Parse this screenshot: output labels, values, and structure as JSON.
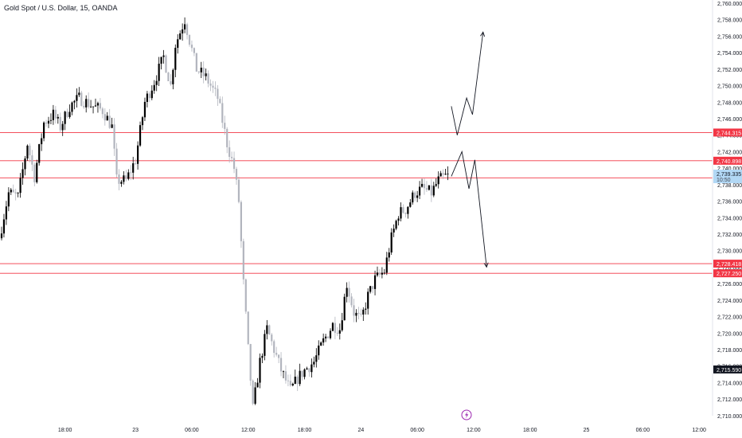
{
  "header": {
    "title": "Gold Spot / U.S. Dollar, 15, OANDA"
  },
  "colors": {
    "up": "#000000",
    "down": "#b2b5be",
    "level_line": "#f23645",
    "level_tag": "#f23645",
    "current_tag_bg": "#b2d8f5",
    "last_tag_bg": "#131722",
    "axis_text": "#131722",
    "arrow": "#131722",
    "lightning": "#9c27b0"
  },
  "chart_data": {
    "type": "candlestick",
    "symbol": "XAUUSD",
    "timeframe": "15",
    "ylim": [
      2709.5,
      2760.0
    ],
    "y_ticks": [
      "2,710.000",
      "2,712.000",
      "2,714.000",
      "2,716.000",
      "2,718.000",
      "2,720.000",
      "2,722.000",
      "2,724.000",
      "2,726.000",
      "2,728.000",
      "2,730.000",
      "2,732.000",
      "2,734.000",
      "2,736.000",
      "2,738.000",
      "2,740.000",
      "2,742.000",
      "2,744.000",
      "2,746.000",
      "2,748.000",
      "2,750.000",
      "2,752.000",
      "2,754.000",
      "2,756.000",
      "2,758.000",
      "2,760.000"
    ],
    "x_ticks": [
      {
        "label": "18:00",
        "t": 27
      },
      {
        "label": "23",
        "t": 57
      },
      {
        "label": "06:00",
        "t": 81
      },
      {
        "label": "12:00",
        "t": 105
      },
      {
        "label": "18:00",
        "t": 129
      },
      {
        "label": "24",
        "t": 153
      },
      {
        "label": "06:00",
        "t": 177
      },
      {
        "label": "12:00",
        "t": 201
      },
      {
        "label": "18:00",
        "t": 225
      },
      {
        "label": "25",
        "t": 249
      },
      {
        "label": "06:00",
        "t": 273
      },
      {
        "label": "12:00",
        "t": 297
      }
    ],
    "horizontal_levels": [
      {
        "value": 2744.315,
        "label": "2,744.315"
      },
      {
        "value": 2740.898,
        "label": "2,740.898"
      },
      {
        "value": 2738.827,
        "label": "2,738.827"
      },
      {
        "value": 2728.418,
        "label": "2,728.418"
      },
      {
        "value": 2727.25,
        "label": "2,727.250"
      }
    ],
    "current_price": {
      "value": 2739.335,
      "label": "2,739.335",
      "countdown": "10:50"
    },
    "last_price_tag": {
      "value": 2715.59,
      "label": "2,715.590"
    },
    "path_anchors": [
      [
        0,
        2731.5
      ],
      [
        4,
        2737.0
      ],
      [
        8,
        2736.5
      ],
      [
        12,
        2743.0
      ],
      [
        15,
        2739.0
      ],
      [
        19,
        2745.5
      ],
      [
        23,
        2746.5
      ],
      [
        26,
        2745.0
      ],
      [
        30,
        2747.5
      ],
      [
        34,
        2748.5
      ],
      [
        40,
        2747.5
      ],
      [
        44,
        2747.0
      ],
      [
        48,
        2745.0
      ],
      [
        50,
        2738.5
      ],
      [
        54,
        2738.5
      ],
      [
        58,
        2741.0
      ],
      [
        62,
        2748.0
      ],
      [
        66,
        2750.5
      ],
      [
        70,
        2753.5
      ],
      [
        73,
        2750.0
      ],
      [
        75,
        2755.0
      ],
      [
        79,
        2758.0
      ],
      [
        81,
        2755.5
      ],
      [
        84,
        2752.0
      ],
      [
        88,
        2751.0
      ],
      [
        93,
        2748.5
      ],
      [
        97,
        2743.0
      ],
      [
        100,
        2740.0
      ],
      [
        102,
        2736.0
      ],
      [
        104,
        2726.0
      ],
      [
        106,
        2718.0
      ],
      [
        108,
        2710.8
      ],
      [
        111,
        2716.5
      ],
      [
        114,
        2720.5
      ],
      [
        117,
        2718.0
      ],
      [
        120,
        2715.5
      ],
      [
        124,
        2713.0
      ],
      [
        127,
        2714.5
      ],
      [
        130,
        2715.5
      ],
      [
        134,
        2716.5
      ],
      [
        138,
        2719.0
      ],
      [
        142,
        2721.0
      ],
      [
        145,
        2720.5
      ],
      [
        148,
        2726.0
      ],
      [
        151,
        2722.5
      ],
      [
        154,
        2721.5
      ],
      [
        157,
        2724.5
      ],
      [
        160,
        2726.5
      ],
      [
        164,
        2727.5
      ],
      [
        167,
        2731.5
      ],
      [
        170,
        2734.5
      ],
      [
        173,
        2735.0
      ],
      [
        177,
        2737.0
      ],
      [
        180,
        2737.5
      ],
      [
        184,
        2737.0
      ],
      [
        187,
        2738.5
      ],
      [
        190,
        2739.0
      ]
    ],
    "projections": {
      "bullish": [
        [
          191.5,
          2747.5
        ],
        [
          194.0,
          2744.0
        ],
        [
          198.0,
          2748.5
        ],
        [
          200.5,
          2746.5
        ],
        [
          205.0,
          2756.5
        ]
      ],
      "bearish": [
        [
          191.5,
          2739.0
        ],
        [
          196.0,
          2742.0
        ],
        [
          199.0,
          2737.5
        ],
        [
          201.5,
          2741.0
        ],
        [
          206.5,
          2728.0
        ]
      ]
    }
  },
  "bottom_icon": "lightning-icon"
}
